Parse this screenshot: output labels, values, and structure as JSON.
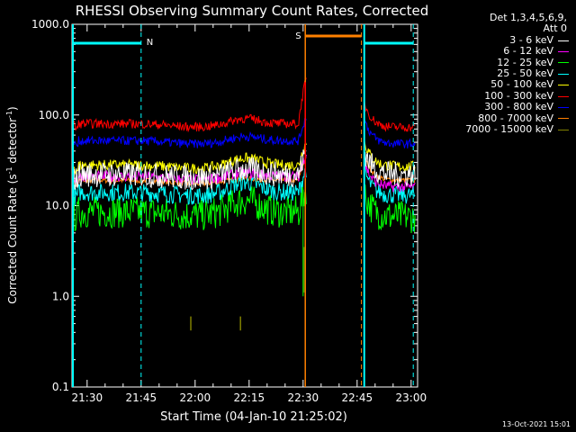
{
  "chart_data": {
    "type": "line",
    "title": "RHESSI Observing Summary Count Rates, Corrected",
    "xlabel": "Start Time (04-Jan-10 21:25:02)",
    "ylabel_main": "Corrected Count Rate (s",
    "ylabel_sup": "-1",
    "ylabel_tail": " detector",
    "ylabel_sup2": "-1",
    "ylabel_end": ")",
    "y_scale": "log",
    "ylim": [
      0.1,
      1000
    ],
    "xlim": [
      21.43,
      23.03
    ],
    "y_ticks": [
      {
        "value": 1000,
        "label": "1000.0"
      },
      {
        "value": 100,
        "label": "100.0"
      },
      {
        "value": 10,
        "label": "10.0"
      },
      {
        "value": 1,
        "label": "1.0"
      },
      {
        "value": 0.1,
        "label": "0.1"
      }
    ],
    "x_ticks": [
      {
        "value": 21.5,
        "label": "21:30"
      },
      {
        "value": 21.75,
        "label": "21:45"
      },
      {
        "value": 22.0,
        "label": "22:00"
      },
      {
        "value": 22.25,
        "label": "22:15"
      },
      {
        "value": 22.5,
        "label": "22:30"
      },
      {
        "value": 22.75,
        "label": "22:45"
      },
      {
        "value": 23.0,
        "label": "23:00"
      }
    ],
    "legend_header": [
      "Det 1,3,4,5,6,9,",
      "Att 0"
    ],
    "series": [
      {
        "name": "3 - 6 keV",
        "color": "#ffffff",
        "base": 22,
        "bump": 0.15,
        "post": 22,
        "noise": 0.14
      },
      {
        "name": "6 - 12 keV",
        "color": "#ff00ff",
        "base": 21,
        "bump": 0.1,
        "post": 16,
        "noise": 0.06
      },
      {
        "name": "12 - 25 keV",
        "color": "#00ff00",
        "base": 8.5,
        "bump": 0.35,
        "post": 7.5,
        "noise": 0.18
      },
      {
        "name": "25 - 50 keV",
        "color": "#00ffff",
        "base": 14,
        "bump": 0.3,
        "post": 13,
        "noise": 0.1
      },
      {
        "name": "50 - 100 keV",
        "color": "#ffff00",
        "base": 28,
        "bump": 0.2,
        "post": 27,
        "noise": 0.06
      },
      {
        "name": "100 - 300 keV",
        "color": "#ff0000",
        "base": 80,
        "bump": 0.15,
        "post": 73,
        "noise": 0.05
      },
      {
        "name": "300 - 800 keV",
        "color": "#0000ff",
        "base": 52,
        "bump": 0.12,
        "post": 48,
        "noise": 0.05
      },
      {
        "name": "800 - 7000 keV",
        "color": "#ff8000",
        "base": 19,
        "bump": 0.05,
        "post": 19,
        "noise": 0.03
      },
      {
        "name": "7000 - 15000 keV",
        "color": "#808000",
        "base": 0.5,
        "bump": 0,
        "post": 0.5,
        "noise": 0
      }
    ],
    "gaps": [
      {
        "from": 22.517,
        "to": 22.782
      }
    ],
    "annotations": [
      {
        "text": "N",
        "x": 21.75,
        "color": "#00ffff"
      },
      {
        "text": "S",
        "x": 22.51,
        "color": "#ff8000"
      }
    ],
    "footer_stamp": "13-Oct-2021 15:01"
  }
}
